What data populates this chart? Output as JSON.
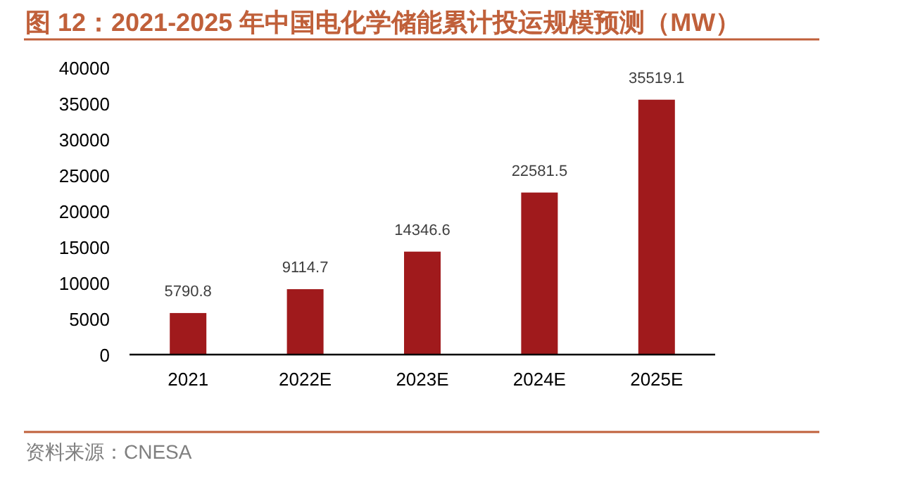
{
  "chart_data": {
    "type": "bar",
    "title": "图 12：2021-2025 年中国电化学储能累计投运规模预测（MW）",
    "categories": [
      "2021",
      "2022E",
      "2023E",
      "2024E",
      "2025E"
    ],
    "values": [
      5790.8,
      9114.7,
      14346.6,
      22581.5,
      35519.1
    ],
    "color": "#a01a1c",
    "ylim": [
      0,
      40000
    ],
    "yticks": [
      0,
      5000,
      10000,
      15000,
      20000,
      25000,
      30000,
      35000,
      40000
    ],
    "data_labels": true,
    "annotations": [
      "资料来源：CNESA"
    ]
  }
}
